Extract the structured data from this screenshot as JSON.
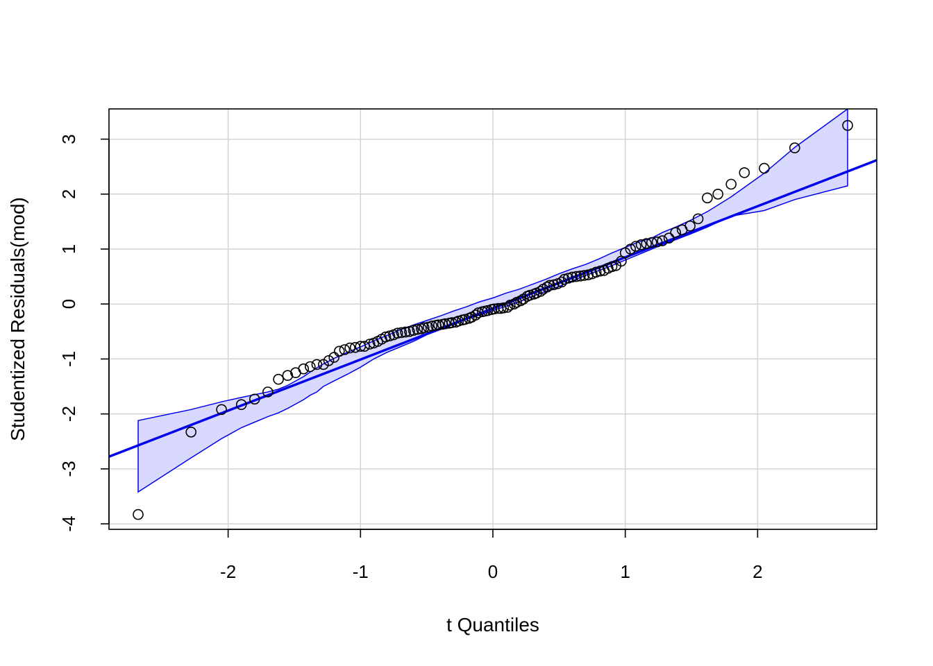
{
  "chart_data": {
    "type": "scatter",
    "title": "",
    "xlabel": "t Quantiles",
    "ylabel": "Studentized Residuals(mod)",
    "xlim": [
      -2.9,
      2.9
    ],
    "ylim": [
      -4.1,
      3.55
    ],
    "x_ticks": [
      -2,
      -1,
      0,
      1,
      2
    ],
    "y_ticks": [
      -4,
      -3,
      -2,
      -1,
      0,
      1,
      2,
      3
    ],
    "grid": true,
    "colors": {
      "points": "#000000",
      "reference_line": "#0000ee",
      "envelope_fill": "#d9d9ff",
      "envelope_edge": "#0000ee",
      "grid": "#d3d3d3"
    },
    "reference_line": {
      "intercept": -0.08,
      "slope": 0.93
    },
    "envelope": {
      "x": [
        -2.68,
        -2.28,
        -2.05,
        -1.9,
        -1.8,
        -1.7,
        -1.62,
        -1.55,
        -1.49,
        -1.43,
        -1.38,
        -1.33,
        -1.28,
        -1.2,
        -1.1,
        -1.0,
        -0.9,
        -0.8,
        -0.7,
        -0.6,
        -0.5,
        -0.4,
        -0.3,
        -0.2,
        -0.1,
        0.0,
        0.1,
        0.2,
        0.3,
        0.4,
        0.5,
        0.6,
        0.7,
        0.8,
        0.9,
        1.0,
        1.1,
        1.2,
        1.28,
        1.38,
        1.49,
        1.62,
        1.8,
        2.05,
        2.28,
        2.68
      ],
      "lower": [
        -3.42,
        -2.8,
        -2.45,
        -2.25,
        -2.15,
        -2.05,
        -1.98,
        -1.9,
        -1.82,
        -1.74,
        -1.66,
        -1.6,
        -1.5,
        -1.4,
        -1.28,
        -1.15,
        -1.0,
        -0.88,
        -0.78,
        -0.68,
        -0.56,
        -0.47,
        -0.37,
        -0.28,
        -0.2,
        -0.12,
        -0.04,
        0.04,
        0.14,
        0.23,
        0.32,
        0.42,
        0.52,
        0.61,
        0.7,
        0.8,
        0.9,
        1.0,
        1.08,
        1.17,
        1.27,
        1.4,
        1.6,
        1.7,
        1.9,
        2.15
      ],
      "upper": [
        -2.12,
        -1.92,
        -1.78,
        -1.7,
        -1.65,
        -1.6,
        -1.55,
        -1.48,
        -1.4,
        -1.32,
        -1.24,
        -1.16,
        -1.09,
        -0.99,
        -0.88,
        -0.78,
        -0.67,
        -0.57,
        -0.47,
        -0.38,
        -0.3,
        -0.22,
        -0.13,
        -0.05,
        0.04,
        0.11,
        0.2,
        0.27,
        0.36,
        0.45,
        0.55,
        0.64,
        0.72,
        0.82,
        0.93,
        1.03,
        1.13,
        1.2,
        1.3,
        1.4,
        1.52,
        1.68,
        1.95,
        2.38,
        2.85,
        3.55
      ]
    },
    "points": {
      "x": [
        -2.68,
        -2.28,
        -2.05,
        -1.9,
        -1.8,
        -1.7,
        -1.62,
        -1.55,
        -1.49,
        -1.43,
        -1.38,
        -1.33,
        -1.28,
        -1.24,
        -1.2,
        -1.16,
        -1.12,
        -1.08,
        -1.04,
        -1.0,
        -0.97,
        -0.93,
        -0.9,
        -0.87,
        -0.84,
        -0.81,
        -0.78,
        -0.75,
        -0.72,
        -0.69,
        -0.66,
        -0.63,
        -0.6,
        -0.57,
        -0.54,
        -0.52,
        -0.49,
        -0.46,
        -0.43,
        -0.41,
        -0.38,
        -0.36,
        -0.33,
        -0.31,
        -0.28,
        -0.26,
        -0.23,
        -0.21,
        -0.18,
        -0.16,
        -0.13,
        -0.11,
        -0.08,
        -0.06,
        -0.04,
        -0.01,
        0.01,
        0.04,
        0.06,
        0.08,
        0.11,
        0.13,
        0.16,
        0.18,
        0.21,
        0.23,
        0.26,
        0.28,
        0.31,
        0.33,
        0.36,
        0.38,
        0.41,
        0.43,
        0.46,
        0.49,
        0.52,
        0.54,
        0.57,
        0.6,
        0.63,
        0.66,
        0.69,
        0.72,
        0.75,
        0.78,
        0.81,
        0.84,
        0.87,
        0.9,
        0.93,
        0.97,
        1.0,
        1.04,
        1.08,
        1.12,
        1.16,
        1.2,
        1.24,
        1.28,
        1.33,
        1.38,
        1.43,
        1.49,
        1.55,
        1.62,
        1.7,
        1.8,
        1.9,
        2.05,
        2.28,
        2.68
      ],
      "y": [
        -3.83,
        -2.33,
        -1.92,
        -1.83,
        -1.73,
        -1.6,
        -1.37,
        -1.3,
        -1.25,
        -1.18,
        -1.14,
        -1.1,
        -1.1,
        -1.03,
        -0.97,
        -0.86,
        -0.83,
        -0.8,
        -0.79,
        -0.77,
        -0.77,
        -0.73,
        -0.71,
        -0.68,
        -0.64,
        -0.6,
        -0.58,
        -0.56,
        -0.53,
        -0.52,
        -0.51,
        -0.5,
        -0.48,
        -0.46,
        -0.45,
        -0.43,
        -0.42,
        -0.4,
        -0.39,
        -0.38,
        -0.37,
        -0.36,
        -0.35,
        -0.34,
        -0.33,
        -0.31,
        -0.29,
        -0.28,
        -0.26,
        -0.24,
        -0.2,
        -0.16,
        -0.14,
        -0.13,
        -0.12,
        -0.1,
        -0.09,
        -0.08,
        -0.08,
        -0.07,
        -0.06,
        -0.02,
        0.0,
        0.03,
        0.06,
        0.09,
        0.14,
        0.16,
        0.18,
        0.2,
        0.23,
        0.27,
        0.31,
        0.34,
        0.35,
        0.37,
        0.4,
        0.45,
        0.47,
        0.49,
        0.5,
        0.51,
        0.52,
        0.53,
        0.55,
        0.58,
        0.6,
        0.61,
        0.65,
        0.68,
        0.7,
        0.78,
        0.93,
        1.0,
        1.05,
        1.08,
        1.1,
        1.12,
        1.13,
        1.15,
        1.2,
        1.3,
        1.35,
        1.42,
        1.55,
        1.93,
        2.0,
        2.18,
        2.39,
        2.47,
        2.84,
        3.25
      ]
    }
  }
}
